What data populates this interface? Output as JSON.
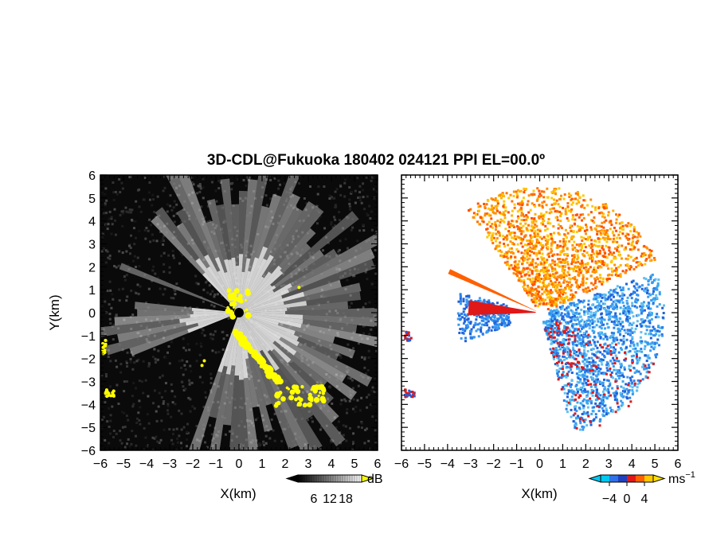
{
  "title": "3D-CDL@Fukuoka 180402 024121 PPI EL=00.0º",
  "chart_data": [
    {
      "type": "heatmap",
      "panel": "left",
      "quantity": "reflectivity",
      "xlabel": "X(km)",
      "ylabel": "Y(km)",
      "xlim": [
        -6,
        6
      ],
      "ylim": [
        -6,
        6
      ],
      "xticks": [
        -6,
        -5,
        -4,
        -3,
        -2,
        -1,
        0,
        1,
        2,
        3,
        4,
        5,
        6
      ],
      "yticks": [
        -6,
        -5,
        -4,
        -3,
        -2,
        -1,
        0,
        1,
        2,
        3,
        4,
        5,
        6
      ],
      "xtick_labels": [
        "−6",
        "−5",
        "−4",
        "−3",
        "−2",
        "−1",
        "0",
        "1",
        "2",
        "3",
        "4",
        "5",
        "6"
      ],
      "ytick_labels": [
        "−6",
        "−5",
        "−4",
        "−3",
        "−2",
        "−1",
        "0",
        "1",
        "2",
        "3",
        "4",
        "5",
        "6"
      ],
      "colorbar": {
        "unit": "dB",
        "ticks": [
          6,
          12,
          18
        ],
        "tick_labels": [
          "6",
          "12",
          "18"
        ],
        "colors": [
          "#000000",
          "#ffffff"
        ]
      },
      "overlay_color": "#ffff00",
      "background_color": "#0a0a0a"
    },
    {
      "type": "heatmap",
      "panel": "right",
      "quantity": "Doppler velocity",
      "xlabel": "X(km)",
      "xlim": [
        -6,
        6
      ],
      "ylim": [
        -6,
        6
      ],
      "xticks": [
        -6,
        -5,
        -4,
        -3,
        -2,
        -1,
        0,
        1,
        2,
        3,
        4,
        5,
        6
      ],
      "xtick_labels": [
        "−6",
        "−5",
        "−4",
        "−3",
        "−2",
        "−1",
        "0",
        "1",
        "2",
        "3",
        "4",
        "5",
        "6"
      ],
      "colorbar": {
        "unit": "ms",
        "unit_exp": "−1",
        "ticks": [
          -4,
          0,
          4
        ],
        "tick_labels": [
          "−4",
          "0",
          "4"
        ],
        "colors": [
          "#00c8f0",
          "#3070e8",
          "#2040c0",
          "#e01818",
          "#ff6000",
          "#ffc800"
        ]
      },
      "background_color": "#ffffff"
    }
  ]
}
